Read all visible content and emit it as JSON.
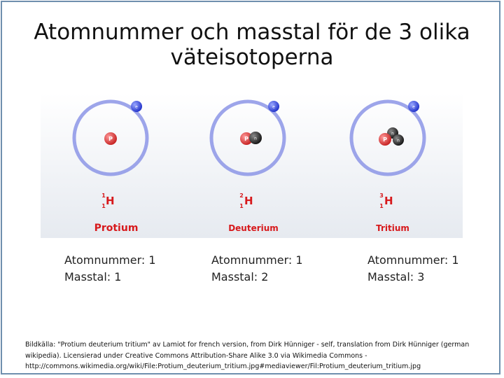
{
  "title": {
    "line1": "Atomnummer och masstal för de 3 olika",
    "line2": "väteisotoperna"
  },
  "diagram": {
    "isotopes": [
      {
        "name": "Protium",
        "mass_number": "1",
        "atomic_number": "1",
        "symbol": "H",
        "proton_label": "P",
        "electron_label": "e",
        "neutron_labels": []
      },
      {
        "name": "Deuterium",
        "mass_number": "2",
        "atomic_number": "1",
        "symbol": "H",
        "proton_label": "P",
        "electron_label": "e",
        "neutron_labels": [
          "n"
        ]
      },
      {
        "name": "Tritium",
        "mass_number": "3",
        "atomic_number": "1",
        "symbol": "H",
        "proton_label": "P",
        "electron_label": "e",
        "neutron_labels": [
          "n",
          "n"
        ]
      }
    ],
    "colors": {
      "orbit": "#8c95e6",
      "electron": "#2a3fe0",
      "proton": "#e23a3a",
      "neutron": "#2b2b2b",
      "label": "#d7191c"
    }
  },
  "info": [
    {
      "atomic": "Atomnummer: 1",
      "mass": "Masstal: 1"
    },
    {
      "atomic": "Atomnummer: 1",
      "mass": "Masstal: 2"
    },
    {
      "atomic": "Atomnummer: 1",
      "mass": "Masstal: 3"
    }
  ],
  "footnote": {
    "line1": "Bildkälla: \"Protium deuterium tritium\" av Lamiot for french version, from Dirk Hünniger - self, translation from Dirk Hünniger (german",
    "line2": "wikipedia). Licensierad under Creative Commons Attribution-Share Alike 3.0 via Wikimedia Commons -",
    "line3": "http://commons.wikimedia.org/wiki/File:Protium_deuterium_tritium.jpg#mediaviewer/Fil:Protium_deuterium_tritium.jpg"
  }
}
